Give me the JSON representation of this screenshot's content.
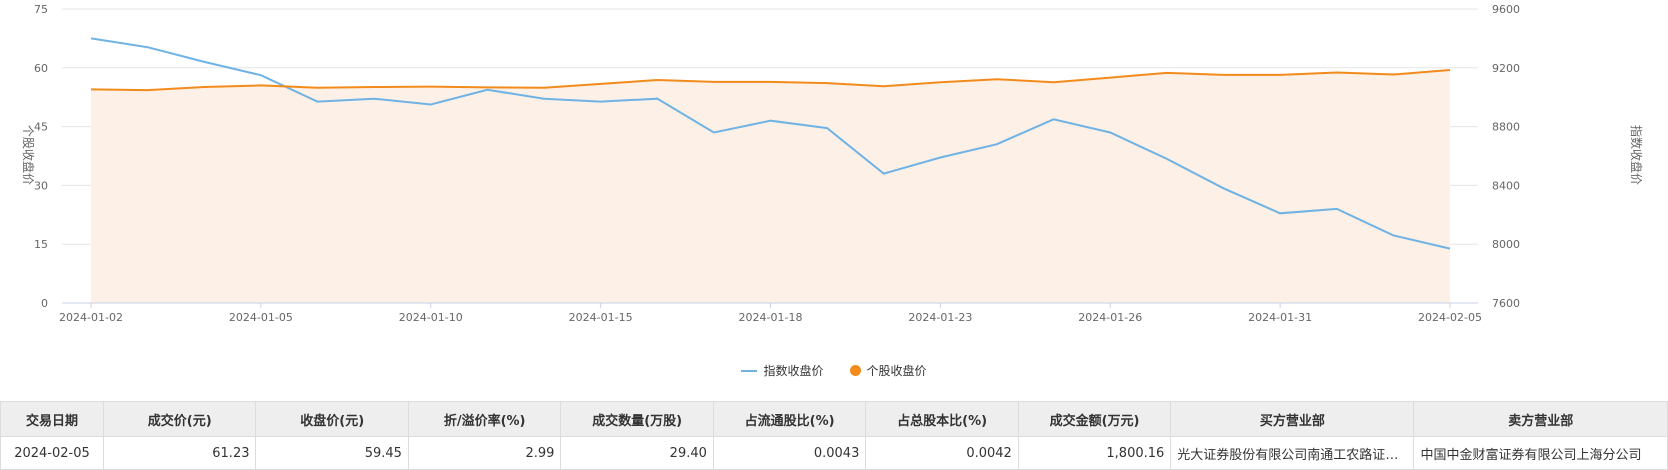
{
  "chart_data": {
    "type": "line",
    "x": [
      "2024-01-02",
      "2024-01-03",
      "2024-01-04",
      "2024-01-05",
      "2024-01-08",
      "2024-01-09",
      "2024-01-10",
      "2024-01-11",
      "2024-01-12",
      "2024-01-15",
      "2024-01-16",
      "2024-01-17",
      "2024-01-18",
      "2024-01-19",
      "2024-01-22",
      "2024-01-23",
      "2024-01-24",
      "2024-01-25",
      "2024-01-26",
      "2024-01-29",
      "2024-01-30",
      "2024-01-31",
      "2024-02-01",
      "2024-02-02",
      "2024-02-05"
    ],
    "xtick_labels": [
      "2024-01-02",
      "2024-01-05",
      "2024-01-10",
      "2024-01-15",
      "2024-01-18",
      "2024-01-23",
      "2024-01-26",
      "2024-01-31",
      "2024-02-05"
    ],
    "left_axis": {
      "label": "个股收盘价",
      "min": 0,
      "max": 75,
      "ticks": [
        0,
        15,
        30,
        45,
        60,
        75
      ]
    },
    "right_axis": {
      "label": "指数收盘价",
      "min": 7600,
      "max": 9600,
      "ticks": [
        7600,
        8000,
        8400,
        8800,
        9200,
        9600
      ]
    },
    "series": [
      {
        "name": "指数收盘价",
        "axis": "right",
        "color": "#6fb2e4",
        "values": [
          9400,
          9340,
          9240,
          9150,
          8970,
          8990,
          8950,
          9050,
          8990,
          8970,
          8990,
          8760,
          8840,
          8790,
          8480,
          8590,
          8680,
          8850,
          8760,
          8580,
          8380,
          8210,
          8240,
          8060,
          7970
        ]
      },
      {
        "name": "个股收盘价",
        "axis": "left",
        "color": "#f28b1c",
        "area": true,
        "area_color": "#fdf0e6",
        "values": [
          54.5,
          54.3,
          55.1,
          55.5,
          54.9,
          55.1,
          55.2,
          55.0,
          54.9,
          55.9,
          56.9,
          56.4,
          56.4,
          56.1,
          55.3,
          56.3,
          57.1,
          56.3,
          57.5,
          58.7,
          58.2,
          58.2,
          58.8,
          58.3,
          59.45
        ]
      }
    ],
    "legend": {
      "placement": "bottom-center"
    },
    "grid": true
  },
  "legend": {
    "index_label": "指数收盘价",
    "stock_label": "个股收盘价"
  },
  "table": {
    "headers": [
      "交易日期",
      "成交价(元)",
      "收盘价(元)",
      "折/溢价率(%)",
      "成交数量(万股)",
      "占流通股比(%)",
      "占总股本比(%)",
      "成交金额(万元)",
      "买方营业部",
      "卖方营业部"
    ],
    "rows": [
      [
        "2024-02-05",
        "61.23",
        "59.45",
        "2.99",
        "29.40",
        "0.0043",
        "0.0042",
        "1,800.16",
        "光大证券股份有限公司南通工农路证券营业部",
        "中国中金财富证券有限公司上海分公司"
      ]
    ]
  }
}
